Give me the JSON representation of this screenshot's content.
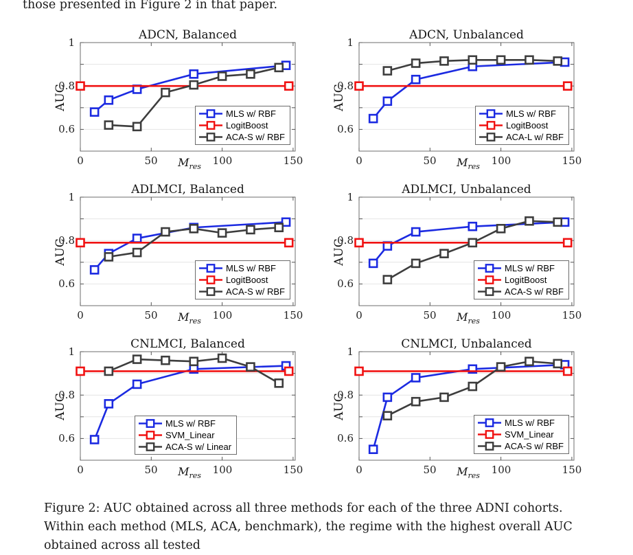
{
  "page": {
    "top_text": "those presented in Figure 2 in that paper.",
    "caption": "Figure 2: AUC obtained across all three methods for each of the three ADNI cohorts. Within each method (MLS, ACA, benchmark), the regime with the highest overall AUC obtained across all tested"
  },
  "colors": {
    "mls_blue": "#1b2ae1",
    "benchmark_red": "#f01212",
    "aca_gray": "#3d3d3d",
    "grid": "#e4e4e4",
    "axis_box": "#6e6e6e",
    "tick": "#555555"
  },
  "axes": {
    "ylabel": "AUC",
    "xlabel_base": "M",
    "xlabel_sub": "res",
    "x_domain": [
      0,
      151.5
    ],
    "y_domain": [
      0.5,
      1.0
    ],
    "grid_y": [
      0.6,
      0.7,
      0.8,
      0.9,
      1.0
    ],
    "x_ticks": [
      {
        "v": 0,
        "label": "0"
      },
      {
        "v": 50,
        "label": "50"
      },
      {
        "v": 100,
        "label": "100"
      },
      {
        "v": 150,
        "label": "150"
      }
    ],
    "y_ticks": [
      {
        "v": 1,
        "label": "1"
      },
      {
        "v": 0.8,
        "label": "0.8"
      },
      {
        "v": 0.6,
        "label": "0.6"
      }
    ],
    "y_minor_ticks": [
      0.6,
      0.7,
      0.8,
      0.9,
      1.0
    ]
  },
  "chart_data": [
    {
      "type": "line",
      "title": "ADCN, Balanced",
      "xlabel": "M_res",
      "ylabel": "AUC",
      "xlim": [
        0,
        150
      ],
      "ylim": [
        0.5,
        1.0
      ],
      "legend_position": "right-bottom",
      "series": [
        {
          "name": "MLS w/ RBF",
          "color": "blue",
          "x": [
            10,
            20,
            40,
            80,
            145
          ],
          "y": [
            0.68,
            0.735,
            0.785,
            0.855,
            0.895
          ]
        },
        {
          "name": "LogitBoost",
          "color": "red",
          "style": "hline",
          "y_value": 0.8,
          "marker_x": [
            0,
            147
          ]
        },
        {
          "name": "ACA-S w/ RBF",
          "color": "gray",
          "x": [
            20,
            40,
            60,
            80,
            100,
            120,
            140
          ],
          "y": [
            0.62,
            0.613,
            0.77,
            0.805,
            0.845,
            0.855,
            0.885
          ]
        }
      ]
    },
    {
      "type": "line",
      "title": "ADCN, Unbalanced",
      "xlabel": "M_res",
      "ylabel": "AUC",
      "xlim": [
        0,
        150
      ],
      "ylim": [
        0.5,
        1.0
      ],
      "legend_position": "right-bottom",
      "series": [
        {
          "name": "MLS w/ RBF",
          "color": "blue",
          "x": [
            10,
            20,
            40,
            80,
            145
          ],
          "y": [
            0.65,
            0.73,
            0.83,
            0.89,
            0.91
          ]
        },
        {
          "name": "LogitBoost",
          "color": "red",
          "style": "hline",
          "y_value": 0.8,
          "marker_x": [
            0,
            147
          ]
        },
        {
          "name": "ACA-L w/ RBF",
          "color": "gray",
          "x": [
            20,
            40,
            60,
            80,
            100,
            120,
            140
          ],
          "y": [
            0.87,
            0.905,
            0.915,
            0.92,
            0.92,
            0.92,
            0.915
          ]
        }
      ]
    },
    {
      "type": "line",
      "title": "ADLMCI, Balanced",
      "xlabel": "M_res",
      "ylabel": "AUC",
      "xlim": [
        0,
        150
      ],
      "ylim": [
        0.5,
        1.0
      ],
      "legend_position": "right-bottom",
      "series": [
        {
          "name": "MLS w/ RBF",
          "color": "blue",
          "x": [
            10,
            20,
            40,
            80,
            145
          ],
          "y": [
            0.665,
            0.74,
            0.81,
            0.86,
            0.885
          ]
        },
        {
          "name": "LogitBoost",
          "color": "red",
          "style": "hline",
          "y_value": 0.79,
          "marker_x": [
            0,
            147
          ]
        },
        {
          "name": "ACA-S w/ RBF",
          "color": "gray",
          "x": [
            20,
            40,
            60,
            80,
            100,
            120,
            140
          ],
          "y": [
            0.725,
            0.745,
            0.84,
            0.855,
            0.835,
            0.85,
            0.86
          ]
        }
      ]
    },
    {
      "type": "line",
      "title": "ADLMCI, Unbalanced",
      "xlabel": "M_res",
      "ylabel": "AUC",
      "xlim": [
        0,
        150
      ],
      "ylim": [
        0.5,
        1.0
      ],
      "legend_position": "right-bottom",
      "series": [
        {
          "name": "MLS w/ RBF",
          "color": "blue",
          "x": [
            10,
            20,
            40,
            80,
            145
          ],
          "y": [
            0.695,
            0.775,
            0.84,
            0.865,
            0.885
          ]
        },
        {
          "name": "LogitBoost",
          "color": "red",
          "style": "hline",
          "y_value": 0.79,
          "marker_x": [
            0,
            147
          ]
        },
        {
          "name": "ACA-S w/ RBF",
          "color": "gray",
          "x": [
            20,
            40,
            60,
            80,
            100,
            120,
            140
          ],
          "y": [
            0.62,
            0.695,
            0.74,
            0.79,
            0.855,
            0.89,
            0.885
          ]
        }
      ]
    },
    {
      "type": "line",
      "title": "CNLMCI, Balanced",
      "xlabel": "M_res",
      "ylabel": "AUC",
      "xlim": [
        0,
        150
      ],
      "ylim": [
        0.5,
        1.0
      ],
      "legend_position": "left-bottom",
      "series": [
        {
          "name": "MLS w/ RBF",
          "color": "blue",
          "x": [
            10,
            20,
            40,
            80,
            145
          ],
          "y": [
            0.595,
            0.76,
            0.85,
            0.92,
            0.935
          ]
        },
        {
          "name": "SVM_Linear",
          "color": "red",
          "style": "hline",
          "y_value": 0.91,
          "marker_x": [
            0,
            147
          ]
        },
        {
          "name": "ACA-S w/ Linear",
          "color": "gray",
          "x": [
            20,
            40,
            60,
            80,
            100,
            120,
            140
          ],
          "y": [
            0.91,
            0.965,
            0.96,
            0.955,
            0.97,
            0.93,
            0.855
          ]
        }
      ]
    },
    {
      "type": "line",
      "title": "CNLMCI, Unbalanced",
      "xlabel": "M_res",
      "ylabel": "AUC",
      "xlim": [
        0,
        150
      ],
      "ylim": [
        0.5,
        1.0
      ],
      "legend_position": "right-bottom",
      "series": [
        {
          "name": "MLS w/ RBF",
          "color": "blue",
          "x": [
            10,
            20,
            40,
            80,
            145
          ],
          "y": [
            0.55,
            0.79,
            0.88,
            0.92,
            0.94
          ]
        },
        {
          "name": "SVM_Linear",
          "color": "red",
          "style": "hline",
          "y_value": 0.91,
          "marker_x": [
            0,
            147
          ]
        },
        {
          "name": "ACA-S w/ RBF",
          "color": "gray",
          "x": [
            20,
            40,
            60,
            80,
            100,
            120,
            140
          ],
          "y": [
            0.705,
            0.77,
            0.79,
            0.84,
            0.93,
            0.955,
            0.945
          ]
        }
      ]
    }
  ]
}
